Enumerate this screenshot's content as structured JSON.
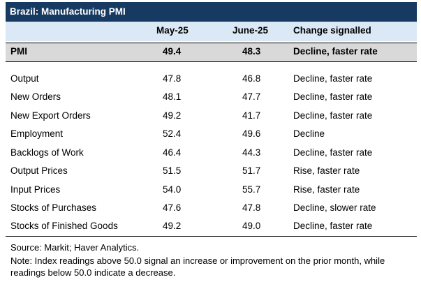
{
  "title": "Brazil: Manufacturing PMI",
  "columns": {
    "may": "May-25",
    "june": "June-25",
    "change": "Change signalled"
  },
  "pmi": {
    "label": "PMI",
    "may": "49.4",
    "june": "48.3",
    "change": "Decline, faster rate"
  },
  "rows": [
    {
      "label": "Output",
      "may": "47.8",
      "june": "46.8",
      "change": "Decline, faster rate"
    },
    {
      "label": "New Orders",
      "may": "48.1",
      "june": "47.7",
      "change": "Decline, faster rate"
    },
    {
      "label": "New Export Orders",
      "may": "49.2",
      "june": "41.7",
      "change": "Decline, faster rate"
    },
    {
      "label": "Employment",
      "may": "52.4",
      "june": "49.6",
      "change": "Decline"
    },
    {
      "label": "Backlogs of Work",
      "may": "46.4",
      "june": "44.3",
      "change": "Decline, faster rate"
    },
    {
      "label": "Output Prices",
      "may": "51.5",
      "june": "51.7",
      "change": "Rise, faster rate"
    },
    {
      "label": "Input Prices",
      "may": "54.0",
      "june": "55.7",
      "change": "Rise, faster rate"
    },
    {
      "label": "Stocks of Purchases",
      "may": "47.6",
      "june": "47.8",
      "change": "Decline, slower rate"
    },
    {
      "label": "Stocks of Finished Goods",
      "may": "49.2",
      "june": "49.0",
      "change": "Decline, faster rate"
    }
  ],
  "source": "Source: Markit; Haver Analytics.",
  "note": "Note: Index readings above 50.0 signal an increase or improvement on the prior month, while readings below 50.0 indicate a decrease.",
  "colors": {
    "title_bg": "#173a62",
    "header_bg": "#dbe8f5",
    "pmi_bg": "#d9d9d9"
  }
}
